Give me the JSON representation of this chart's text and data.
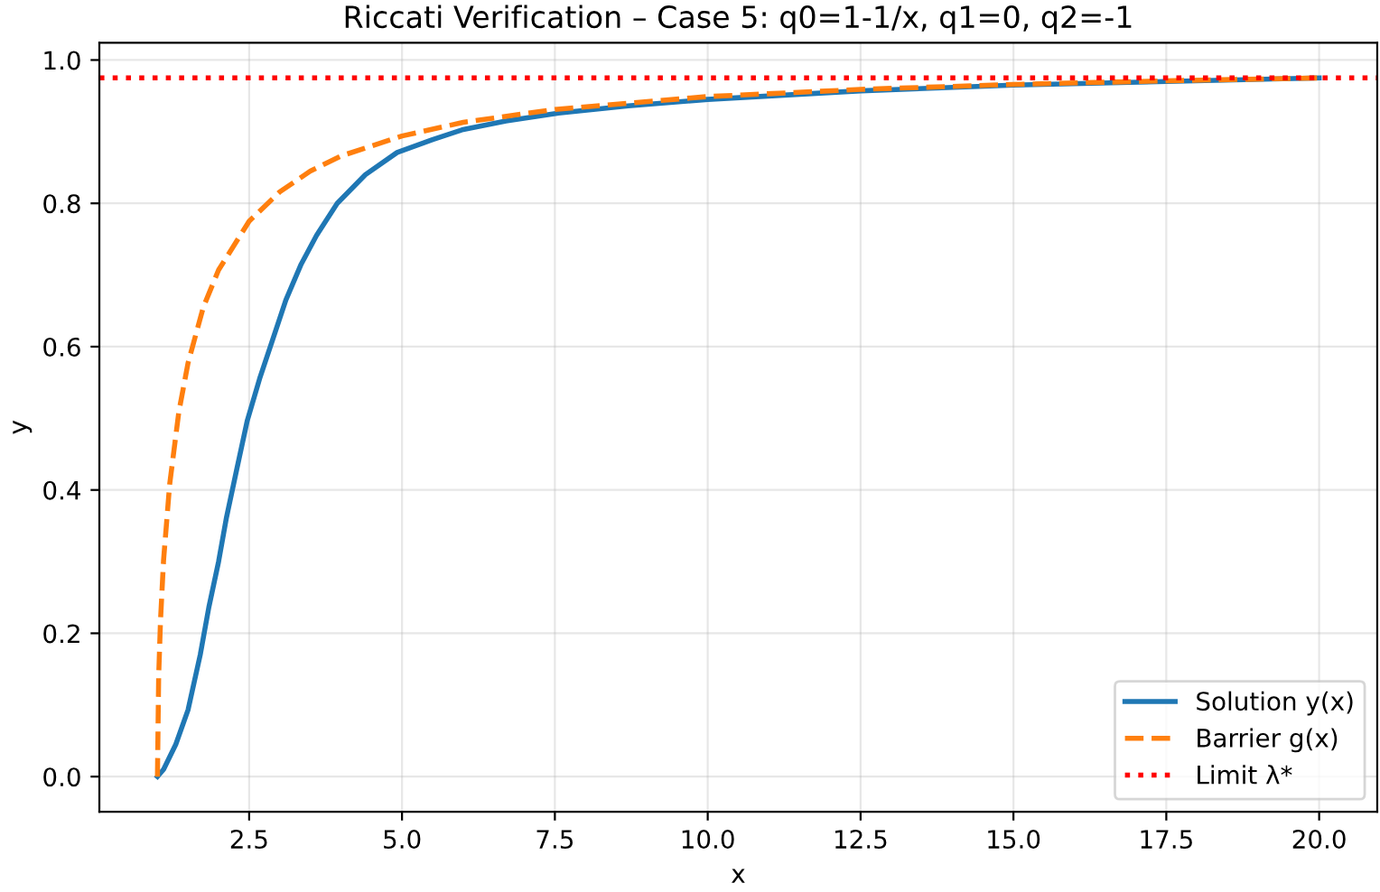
{
  "chart_data": {
    "type": "line",
    "title": "Riccati Verification – Case 5: q0=1-1/x, q1=0, q2=-1",
    "xlabel": "x",
    "ylabel": "y",
    "xlim": [
      0.05,
      20.95
    ],
    "ylim": [
      -0.049,
      1.024
    ],
    "xticks": [
      2.5,
      {
        "value": 5,
        "label": "5.0"
      },
      7.5,
      {
        "value": 10,
        "label": "10.0"
      },
      12.5,
      {
        "value": 15,
        "label": "15.0"
      },
      17.5,
      {
        "value": 20,
        "label": "20.0"
      }
    ],
    "yticks": [
      {
        "value": 0,
        "label": "0.0"
      },
      0.2,
      0.4,
      0.6,
      0.8,
      {
        "value": 1,
        "label": "1.0"
      }
    ],
    "grid": true,
    "legend": "bottom right",
    "series": [
      {
        "name": "Solution y(x)",
        "color": "#1f77b4",
        "line_style": "solid",
        "x": [
          1,
          1.1,
          1.3,
          1.5,
          1.7,
          1.84,
          2.0,
          2.13,
          2.3,
          2.47,
          2.67,
          2.87,
          3.1,
          3.35,
          3.6,
          3.94,
          4.4,
          4.92,
          5.5,
          6,
          6.7,
          7.56,
          8.7,
          10,
          12.5,
          15,
          17.5,
          20
        ],
        "values": [
          0,
          0.01,
          0.045,
          0.093,
          0.17,
          0.236,
          0.3,
          0.362,
          0.43,
          0.497,
          0.555,
          0.606,
          0.665,
          0.715,
          0.755,
          0.8,
          0.84,
          0.871,
          0.889,
          0.903,
          0.915,
          0.926,
          0.936,
          0.945,
          0.957,
          0.965,
          0.97,
          0.975
        ]
      },
      {
        "name": "Barrier g(x)",
        "color": "#ff7f0e",
        "line_style": "dashed",
        "x": [
          1,
          1.02,
          1.05,
          1.1,
          1.2,
          1.35,
          1.5,
          1.75,
          2,
          2.5,
          3,
          3.5,
          4,
          5,
          6,
          7.5,
          10,
          12.5,
          15,
          17.5,
          20
        ],
        "values": [
          0,
          0.14,
          0.218,
          0.302,
          0.408,
          0.509,
          0.577,
          0.655,
          0.707,
          0.775,
          0.816,
          0.845,
          0.866,
          0.894,
          0.913,
          0.931,
          0.949,
          0.959,
          0.966,
          0.971,
          0.975
        ]
      }
    ],
    "ref_lines": [
      {
        "axis": "y",
        "value": 0.975,
        "label": "Limit λ*",
        "color": "#ff0000",
        "line_style": "dotted"
      }
    ]
  }
}
